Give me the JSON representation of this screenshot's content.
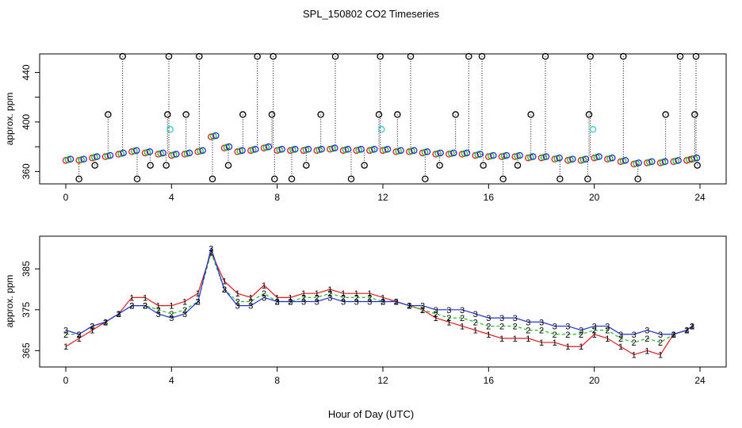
{
  "figure": {
    "title": "SPL_150802  CO2 Timeseries",
    "xlabel": "Hour of Day (UTC)"
  },
  "colors": {
    "axis": "#000000",
    "series_1": "#e31a1c",
    "series_2": "#1fbf1f",
    "series_3": "#1f2fd6",
    "outlier_black": "#000000",
    "outlier_cyan": "#33cccc"
  },
  "chart_data": [
    {
      "type": "scatter",
      "panel": "top",
      "xlabel": "",
      "ylabel": "approx. ppm",
      "xlim": [
        0,
        24
      ],
      "ylim": [
        350,
        455
      ],
      "x_ticks": [
        "0",
        "4",
        "8",
        "12",
        "16",
        "20",
        "24"
      ],
      "y_ticks": [
        "360",
        "400",
        "440"
      ],
      "minor_y_ticks": [
        380,
        420
      ],
      "grid": false,
      "series": [
        {
          "marker": "open-circle",
          "x": [
            0.0,
            0.5,
            1.0,
            1.5,
            2.0,
            2.5,
            3.0,
            3.5,
            4.0,
            4.5,
            5.0,
            5.5,
            6.0,
            6.5,
            7.0,
            7.5,
            8.0,
            8.5,
            9.0,
            9.5,
            10.0,
            10.5,
            11.0,
            11.5,
            12.0,
            12.5,
            13.0,
            13.5,
            14.0,
            14.5,
            15.0,
            15.5,
            16.0,
            16.5,
            17.0,
            17.5,
            18.0,
            18.5,
            19.0,
            19.5,
            20.0,
            20.5,
            21.0,
            21.5,
            22.0,
            22.5,
            23.0,
            23.5,
            23.7
          ],
          "y": [
            370,
            370,
            372,
            373,
            375,
            377,
            376,
            375,
            374,
            375,
            377,
            389,
            380,
            377,
            378,
            380,
            378,
            378,
            378,
            378,
            379,
            378,
            378,
            378,
            378,
            377,
            377,
            376,
            375,
            375,
            375,
            374,
            373,
            373,
            373,
            372,
            372,
            371,
            370,
            370,
            372,
            371,
            369,
            367,
            368,
            368,
            369,
            370,
            371
          ]
        },
        {
          "marker": "open-circle (black, outliers)",
          "x": [
            0.5,
            1.1,
            1.6,
            2.15,
            2.7,
            3.2,
            3.8,
            3.85,
            3.9,
            4.55,
            5.05,
            5.55,
            6.15,
            6.7,
            7.25,
            7.8,
            7.85,
            7.9,
            8.55,
            9.1,
            9.65,
            10.2,
            10.8,
            11.3,
            11.85,
            11.9,
            12.55,
            13.05,
            13.6,
            14.15,
            14.75,
            15.25,
            15.75,
            15.8,
            16.55,
            17.1,
            17.6,
            18.15,
            18.7,
            19.75,
            19.8,
            19.85,
            21.1,
            21.65,
            22.7,
            23.25,
            23.8,
            23.85,
            23.9
          ],
          "y": [
            354,
            365,
            406,
            453,
            354,
            365,
            365,
            406,
            453,
            406,
            453,
            354,
            365,
            406,
            453,
            406,
            453,
            354,
            354,
            365,
            406,
            453,
            354,
            365,
            406,
            453,
            406,
            453,
            354,
            365,
            406,
            453,
            453,
            365,
            354,
            365,
            406,
            453,
            354,
            354,
            406,
            453,
            453,
            354,
            406,
            453,
            406,
            453,
            365
          ]
        },
        {
          "marker": "open-circle (cyan)",
          "x": [
            3.95,
            11.95,
            19.95
          ],
          "y": [
            394,
            394,
            394
          ]
        }
      ]
    },
    {
      "type": "line",
      "panel": "bottom",
      "xlabel": "Hour of Day (UTC)",
      "ylabel": "approx. ppm",
      "xlim": [
        0,
        24
      ],
      "ylim": [
        361,
        393
      ],
      "x_ticks": [
        "0",
        "4",
        "8",
        "12",
        "16",
        "20",
        "24"
      ],
      "y_ticks": [
        "365",
        "375",
        "385"
      ],
      "grid": false,
      "series": [
        {
          "label": "1",
          "x": [
            0.0,
            0.5,
            1.0,
            1.5,
            2.0,
            2.5,
            3.0,
            3.5,
            4.0,
            4.5,
            5.0,
            5.5,
            6.0,
            6.5,
            7.0,
            7.5,
            8.0,
            8.5,
            9.0,
            9.5,
            10.0,
            10.5,
            11.0,
            11.5,
            12.0,
            12.5,
            13.0,
            13.5,
            14.0,
            14.5,
            15.0,
            15.5,
            16.0,
            16.5,
            17.0,
            17.5,
            18.0,
            18.5,
            19.0,
            19.5,
            20.0,
            20.5,
            21.0,
            21.5,
            22.0,
            22.5,
            23.0,
            23.5,
            23.7
          ],
          "y": [
            366,
            368,
            370,
            372,
            374,
            378,
            378,
            376,
            376,
            377,
            379,
            389,
            382,
            379,
            378,
            381,
            378,
            378,
            379,
            379,
            380,
            379,
            379,
            379,
            378,
            377,
            376,
            375,
            373,
            372,
            371,
            370,
            369,
            368,
            368,
            368,
            367,
            367,
            366,
            366,
            369,
            368,
            366,
            364,
            365,
            364,
            369,
            370,
            371
          ]
        },
        {
          "label": "2",
          "x": [
            0.0,
            0.5,
            1.0,
            1.5,
            2.0,
            2.5,
            3.0,
            3.5,
            4.0,
            4.5,
            5.0,
            5.5,
            6.0,
            6.5,
            7.0,
            7.5,
            8.0,
            8.5,
            9.0,
            9.5,
            10.0,
            10.5,
            11.0,
            11.5,
            12.0,
            12.5,
            13.0,
            13.5,
            14.0,
            14.5,
            15.0,
            15.5,
            16.0,
            16.5,
            17.0,
            17.5,
            18.0,
            18.5,
            19.0,
            19.5,
            20.0,
            20.5,
            21.0,
            21.5,
            22.0,
            22.5,
            23.0,
            23.5,
            23.7
          ],
          "y": [
            369,
            369,
            371,
            372,
            374,
            376,
            376,
            375,
            374,
            375,
            377,
            389,
            380,
            377,
            377,
            379,
            377,
            377,
            378,
            378,
            379,
            378,
            378,
            378,
            377,
            377,
            376,
            375,
            374,
            373,
            373,
            372,
            371,
            371,
            371,
            370,
            370,
            369,
            369,
            369,
            370,
            370,
            368,
            367,
            368,
            367,
            369,
            370,
            371
          ]
        },
        {
          "label": "3",
          "x": [
            0.0,
            0.5,
            1.0,
            1.5,
            2.0,
            2.5,
            3.0,
            3.5,
            4.0,
            4.5,
            5.0,
            5.5,
            6.0,
            6.5,
            7.0,
            7.5,
            8.0,
            8.5,
            9.0,
            9.5,
            10.0,
            10.5,
            11.0,
            11.5,
            12.0,
            12.5,
            13.0,
            13.5,
            14.0,
            14.5,
            15.0,
            15.5,
            16.0,
            16.5,
            17.0,
            17.5,
            18.0,
            18.5,
            19.0,
            19.5,
            20.0,
            20.5,
            21.0,
            21.5,
            22.0,
            22.5,
            23.0,
            23.5,
            23.7
          ],
          "y": [
            370,
            369,
            371,
            372,
            374,
            376,
            376,
            374,
            373,
            374,
            377,
            390,
            380,
            376,
            376,
            378,
            377,
            377,
            377,
            377,
            378,
            377,
            377,
            377,
            377,
            377,
            376,
            376,
            375,
            375,
            375,
            374,
            373,
            373,
            373,
            372,
            372,
            371,
            371,
            370,
            371,
            371,
            369,
            369,
            370,
            369,
            369,
            370,
            371
          ]
        }
      ]
    }
  ]
}
